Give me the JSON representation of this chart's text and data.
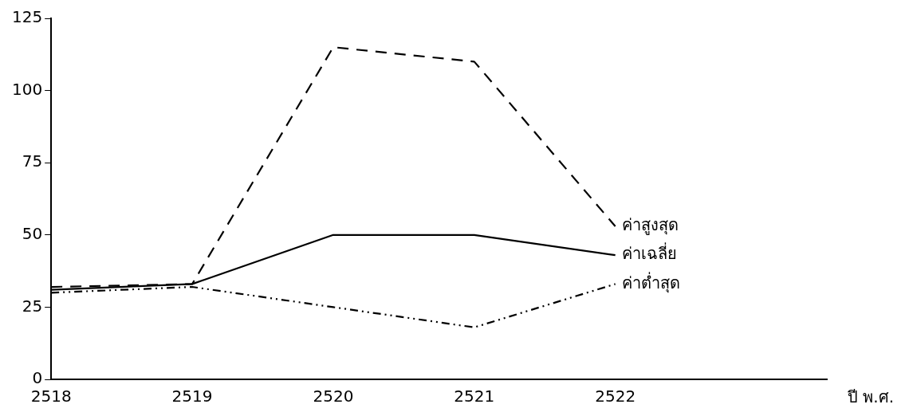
{
  "chart_data": {
    "type": "line",
    "xlabel": "ปี พ.ศ.",
    "x": [
      2518,
      2519,
      2520,
      2521,
      2522
    ],
    "xlim": [
      2518,
      2523.5
    ],
    "xticks": [
      2518,
      2519,
      2520,
      2521,
      2522
    ],
    "ylim": [
      0,
      125
    ],
    "yticks": [
      0,
      25,
      50,
      75,
      100,
      125
    ],
    "grid": false,
    "legend": false,
    "marker": "none",
    "series": [
      {
        "name": "ค่าสูงสุด",
        "color": "#000000",
        "line_style": "dashed",
        "values": [
          32,
          33,
          115,
          110,
          53
        ]
      },
      {
        "name": "ค่าเฉลี่ย",
        "color": "#000000",
        "line_style": "solid",
        "values": [
          31,
          33,
          50,
          50,
          43
        ]
      },
      {
        "name": "ค่าต่ำสุด",
        "color": "#000000",
        "line_style": "dotted",
        "values": [
          30,
          32,
          25,
          18,
          33
        ]
      }
    ]
  }
}
